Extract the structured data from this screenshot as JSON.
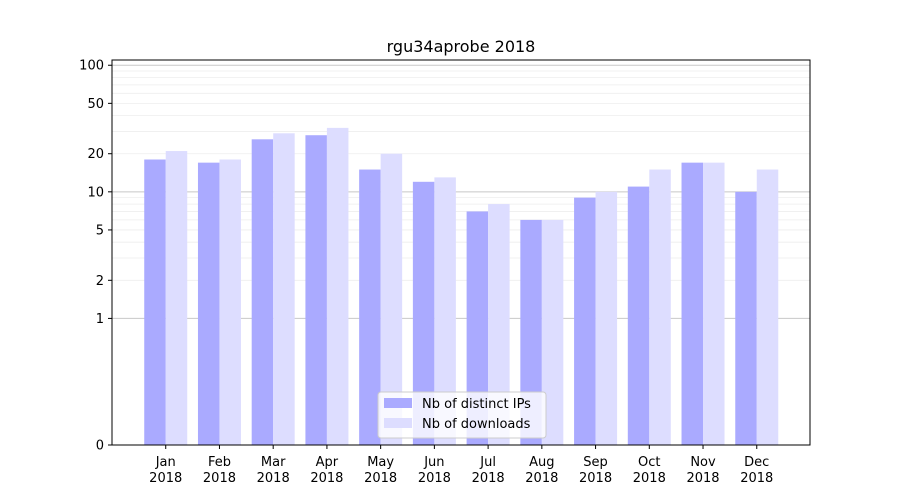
{
  "chart_data": {
    "type": "bar",
    "title": "rgu34aprobe 2018",
    "xlabel": "",
    "ylabel": "",
    "y_scale": "symlog",
    "ylim": [
      0,
      110
    ],
    "categories": [
      {
        "month": "Jan",
        "year": "2018"
      },
      {
        "month": "Feb",
        "year": "2018"
      },
      {
        "month": "Mar",
        "year": "2018"
      },
      {
        "month": "Apr",
        "year": "2018"
      },
      {
        "month": "May",
        "year": "2018"
      },
      {
        "month": "Jun",
        "year": "2018"
      },
      {
        "month": "Jul",
        "year": "2018"
      },
      {
        "month": "Aug",
        "year": "2018"
      },
      {
        "month": "Sep",
        "year": "2018"
      },
      {
        "month": "Oct",
        "year": "2018"
      },
      {
        "month": "Nov",
        "year": "2018"
      },
      {
        "month": "Dec",
        "year": "2018"
      }
    ],
    "series": [
      {
        "name": "Nb of distinct IPs",
        "color": "#aaaaff",
        "values": [
          18,
          17,
          26,
          28,
          15,
          12,
          7,
          6,
          9,
          11,
          17,
          10
        ]
      },
      {
        "name": "Nb of downloads",
        "color": "#ddddff",
        "values": [
          21,
          18,
          29,
          32,
          20,
          13,
          8,
          6,
          10,
          15,
          17,
          15
        ]
      }
    ],
    "y_ticks": [
      0,
      1,
      2,
      5,
      10,
      20,
      50,
      100
    ],
    "y_tick_labels": [
      "0",
      "1",
      "2",
      "5",
      "10",
      "20",
      "50",
      "100"
    ],
    "grid": "horizontal",
    "legend_position": "lower-center"
  }
}
